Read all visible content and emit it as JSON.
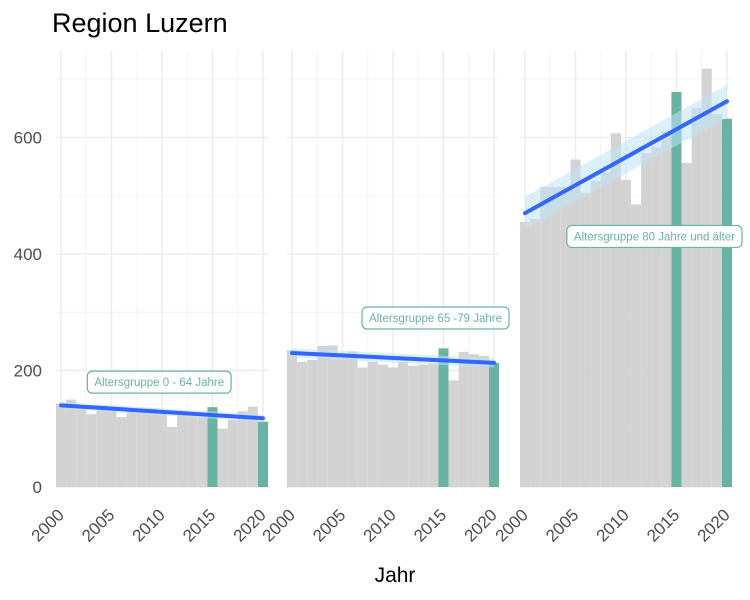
{
  "chart_data": {
    "type": "bar",
    "title": "Region Luzern",
    "xlabel": "Jahr",
    "ylabel": "",
    "ylim": [
      0,
      750
    ],
    "yticks": [
      0,
      200,
      400,
      600
    ],
    "xlim": [
      1999.5,
      2020.5
    ],
    "xticks": [
      2000,
      2005,
      2010,
      2015,
      2020
    ],
    "grid": true,
    "colors": {
      "bar": "#d3d3d3",
      "highlight": "#69b3a2",
      "trend_line": "#3366ff",
      "trend_band": "#bfe3f5",
      "grid_major": "#ebebeb",
      "grid_minor": "#f4f4f4",
      "tick_text": "#4d4d4d"
    },
    "highlight_years": [
      2015,
      2020
    ],
    "panels": [
      {
        "annotation": "Altersgruppe 0 - 64 Jahre",
        "annotation_at": [
          2003,
          180
        ],
        "years": [
          2000,
          2001,
          2002,
          2003,
          2004,
          2005,
          2006,
          2007,
          2008,
          2009,
          2010,
          2011,
          2012,
          2013,
          2014,
          2015,
          2016,
          2017,
          2018,
          2019,
          2020
        ],
        "values": [
          143,
          150,
          140,
          125,
          140,
          135,
          120,
          135,
          130,
          135,
          130,
          103,
          130,
          125,
          120,
          137,
          100,
          115,
          130,
          138,
          112
        ],
        "trend": [
          140,
          118
        ],
        "band": [
          6,
          6
        ]
      },
      {
        "annotation": "Altersgruppe 65 -79 Jahre",
        "annotation_at": [
          2009,
          290
        ],
        "years": [
          2000,
          2001,
          2002,
          2003,
          2004,
          2005,
          2006,
          2007,
          2008,
          2009,
          2010,
          2011,
          2012,
          2013,
          2014,
          2015,
          2016,
          2017,
          2018,
          2019,
          2020
        ],
        "values": [
          235,
          215,
          218,
          242,
          243,
          230,
          233,
          205,
          215,
          210,
          205,
          215,
          208,
          210,
          212,
          238,
          183,
          232,
          228,
          225,
          213
        ],
        "trend": [
          230,
          213
        ],
        "band": [
          8,
          8
        ]
      },
      {
        "annotation": "Altersgruppe 80 Jahre und älter",
        "annotation_at": [
          2009,
          430
        ],
        "years": [
          2000,
          2001,
          2002,
          2003,
          2004,
          2005,
          2006,
          2007,
          2008,
          2009,
          2010,
          2011,
          2012,
          2013,
          2014,
          2015,
          2016,
          2017,
          2018,
          2019,
          2020
        ],
        "values": [
          455,
          460,
          515,
          515,
          515,
          562,
          505,
          525,
          540,
          607,
          527,
          485,
          573,
          583,
          610,
          678,
          556,
          650,
          718,
          640,
          632
        ],
        "trend": [
          470,
          662
        ],
        "band": [
          28,
          28
        ]
      }
    ]
  }
}
